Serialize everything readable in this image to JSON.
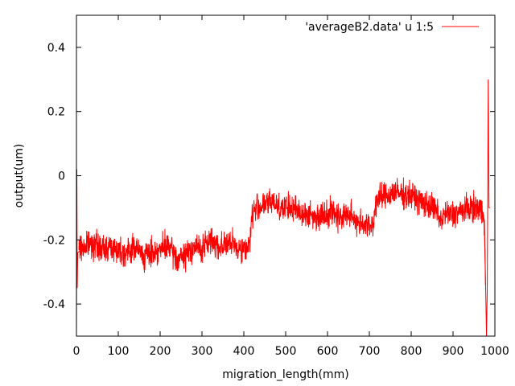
{
  "chart_data": {
    "type": "line",
    "xlabel": "migration_length(mm)",
    "ylabel": "output(um)",
    "xlim": [
      0,
      1000
    ],
    "ylim": [
      -0.5,
      0.5
    ],
    "x_ticks": [
      0,
      100,
      200,
      300,
      400,
      500,
      600,
      700,
      800,
      900,
      1000
    ],
    "x_tick_labels": [
      "0",
      "100",
      "200",
      "300",
      "400",
      "500",
      "600",
      "700",
      "800",
      "900",
      "1000"
    ],
    "y_ticks": [
      -0.4,
      -0.2,
      0,
      0.2,
      0.4
    ],
    "y_tick_labels": [
      "-0.4",
      "-0.2",
      "0",
      "0.2",
      "0.4"
    ],
    "grid": false,
    "legend_position": "top-right",
    "series": [
      {
        "name": "'averageB2.data' u 1:5",
        "color": "#ff0000",
        "noise_amplitude": 0.03,
        "x": [
          0,
          1,
          2,
          3,
          5,
          20,
          40,
          60,
          80,
          100,
          120,
          140,
          160,
          180,
          200,
          220,
          240,
          260,
          280,
          300,
          320,
          340,
          360,
          380,
          400,
          410,
          415,
          420,
          430,
          450,
          470,
          490,
          510,
          530,
          550,
          570,
          590,
          610,
          630,
          650,
          670,
          690,
          700,
          710,
          715,
          725,
          745,
          760,
          780,
          800,
          820,
          840,
          860,
          870,
          880,
          900,
          920,
          940,
          960,
          970,
          975,
          980,
          982,
          984,
          986,
          988
        ],
        "y": [
          -0.5,
          0.02,
          -0.35,
          -0.24,
          -0.23,
          -0.22,
          -0.21,
          -0.23,
          -0.22,
          -0.23,
          -0.24,
          -0.22,
          -0.25,
          -0.24,
          -0.23,
          -0.22,
          -0.26,
          -0.25,
          -0.22,
          -0.23,
          -0.2,
          -0.22,
          -0.21,
          -0.22,
          -0.23,
          -0.22,
          -0.2,
          -0.12,
          -0.1,
          -0.09,
          -0.08,
          -0.1,
          -0.1,
          -0.11,
          -0.12,
          -0.13,
          -0.12,
          -0.11,
          -0.13,
          -0.12,
          -0.14,
          -0.15,
          -0.16,
          -0.15,
          -0.08,
          -0.07,
          -0.06,
          -0.05,
          -0.06,
          -0.06,
          -0.08,
          -0.09,
          -0.11,
          -0.14,
          -0.12,
          -0.12,
          -0.11,
          -0.1,
          -0.1,
          -0.11,
          -0.14,
          -0.5,
          -0.34,
          0.3,
          -0.1,
          -0.1
        ]
      }
    ]
  }
}
